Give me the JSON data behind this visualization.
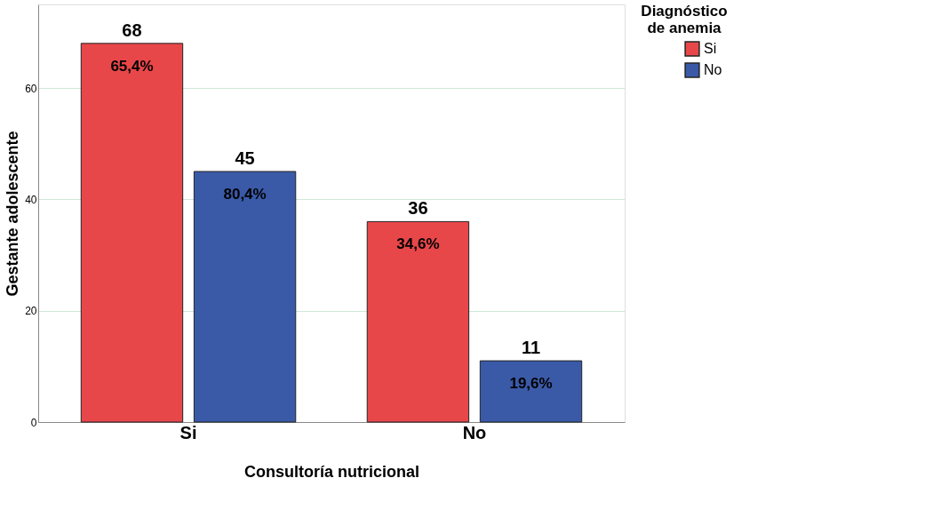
{
  "chart_data": {
    "type": "bar",
    "xlabel": "Consultoría nutricional",
    "ylabel": "Gestante adolescente",
    "legend_title": "Diagnóstico de anemia",
    "categories": [
      "Si",
      "No"
    ],
    "series": [
      {
        "name": "Si",
        "color": "#e8474a",
        "values": [
          68,
          36
        ],
        "value_labels": [
          "68",
          "36"
        ]
      },
      {
        "name": "No",
        "color": "#3a5aa8",
        "values": [
          45,
          11
        ],
        "value_labels": [
          "45",
          "11"
        ]
      }
    ],
    "annotations": [
      "65,4%",
      "34,6%",
      "80,4%",
      "19,6%"
    ],
    "ylim": [
      0,
      75
    ],
    "yticks": [
      0,
      20,
      40,
      60
    ],
    "grid": "y",
    "legend": "top right"
  }
}
